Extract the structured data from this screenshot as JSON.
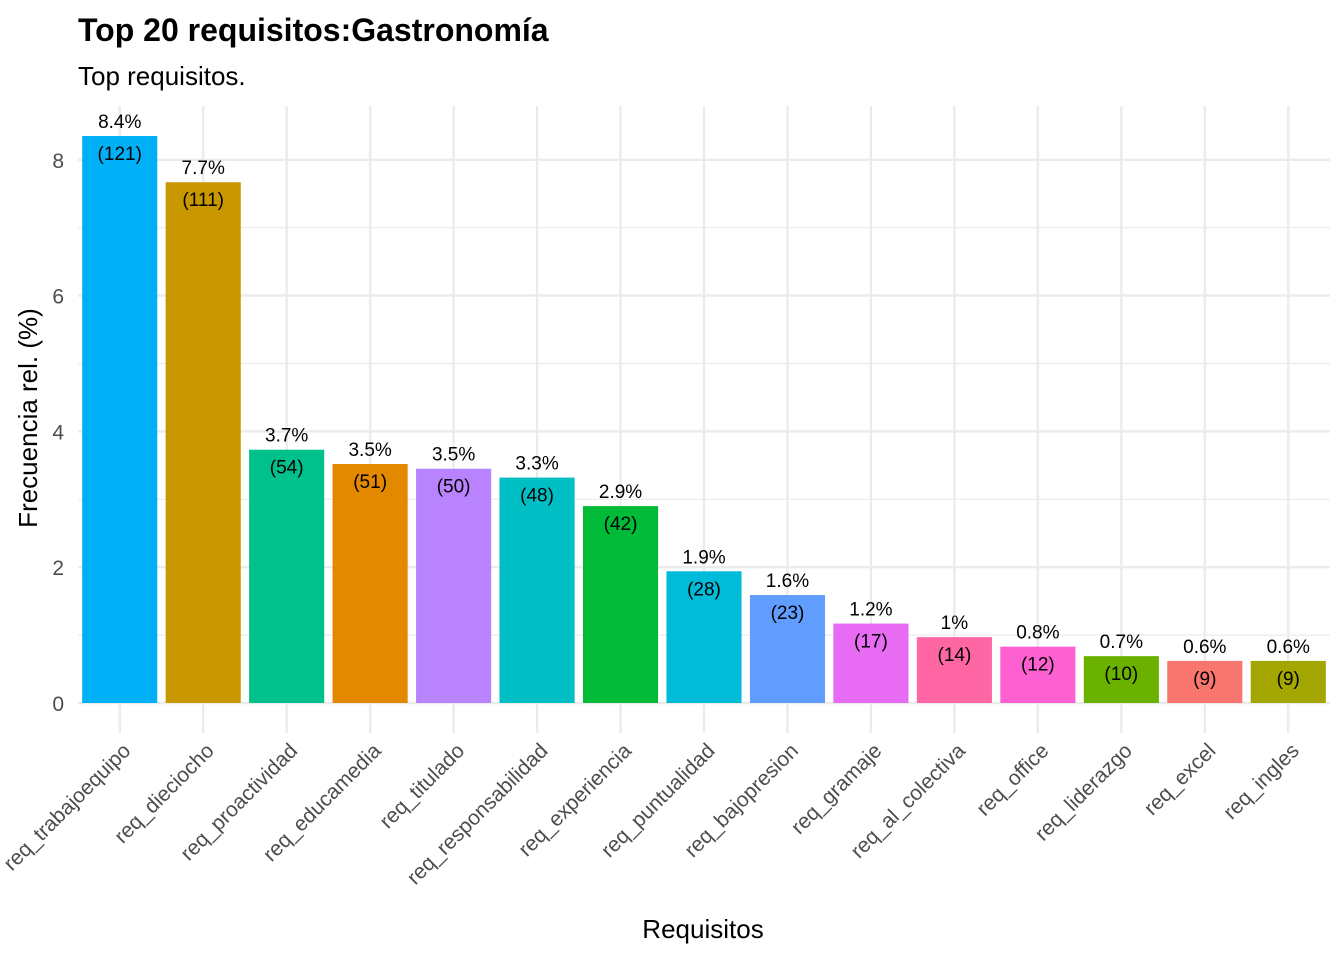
{
  "chart_data": {
    "type": "bar",
    "title": "Top 20 requisitos:Gastronomía",
    "subtitle": "Top requisitos.",
    "xlabel": "Requisitos",
    "ylabel": "Frecuencia rel. (%)",
    "ylim": [
      0,
      8.8
    ],
    "yticks": [
      "0",
      "2",
      "4",
      "6",
      "8"
    ],
    "grid": true,
    "categories": [
      "req_trabajoequipo",
      "req_dieciocho",
      "req_proactividad",
      "req_educamedia",
      "req_titulado",
      "req_responsabilidad",
      "req_experiencia",
      "req_puntualidad",
      "req_bajopresion",
      "req_gramaje",
      "req_al_colectiva",
      "req_office",
      "req_liderazgo",
      "req_excel",
      "req_ingles"
    ],
    "values": [
      8.35,
      7.67,
      3.73,
      3.52,
      3.45,
      3.32,
      2.9,
      1.94,
      1.59,
      1.17,
      0.97,
      0.83,
      0.69,
      0.62,
      0.62
    ],
    "pct_labels": [
      "8.4%",
      "7.7%",
      "3.7%",
      "3.5%",
      "3.5%",
      "3.3%",
      "2.9%",
      "1.9%",
      "1.6%",
      "1.2%",
      "1%",
      "0.8%",
      "0.7%",
      "0.6%",
      "0.6%"
    ],
    "count_labels": [
      "(121)",
      "(111)",
      "(54)",
      "(51)",
      "(50)",
      "(48)",
      "(42)",
      "(28)",
      "(23)",
      "(17)",
      "(14)",
      "(12)",
      "(10)",
      "(9)",
      "(9)"
    ],
    "colors": [
      "#00B0F6",
      "#C99800",
      "#00C08B",
      "#E38900",
      "#B983FF",
      "#00BFC4",
      "#00BA38",
      "#00BCD8",
      "#619CFF",
      "#E76BF3",
      "#FF67A4",
      "#FD61D1",
      "#6BB100",
      "#F8766D",
      "#A3A500"
    ]
  }
}
